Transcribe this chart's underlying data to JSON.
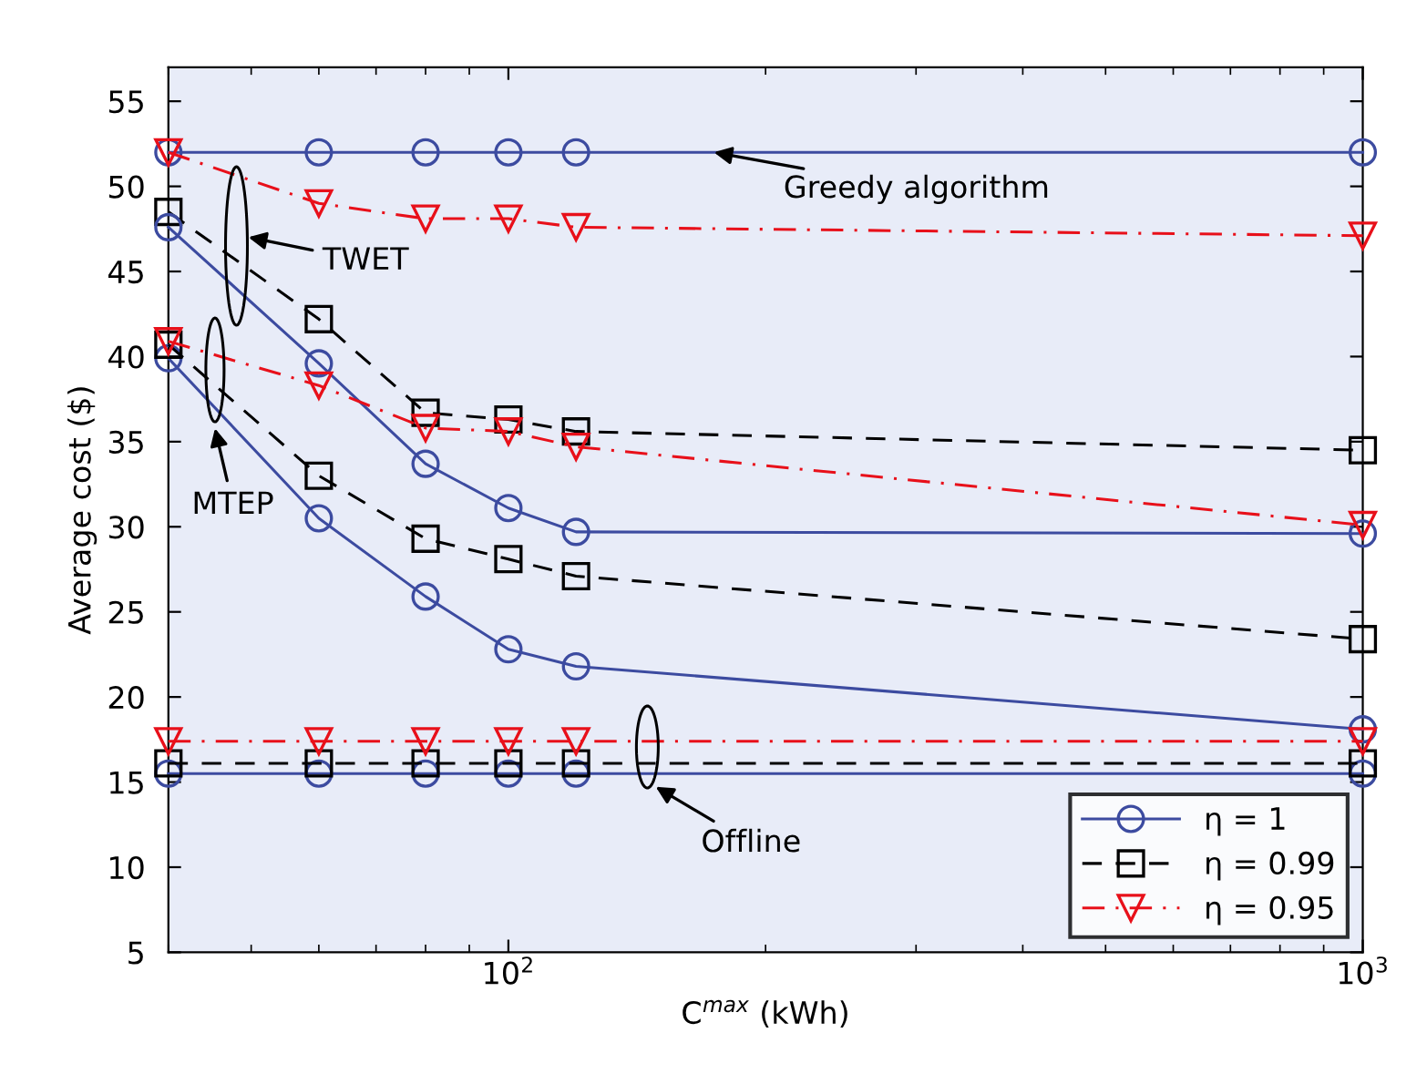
{
  "chart_data": {
    "type": "line",
    "xlabel": "C$^{max}$ (kWh)",
    "ylabel": "Average cost ($)",
    "x": [
      40,
      60,
      80,
      100,
      120,
      1000
    ],
    "xlim": [
      40,
      1000
    ],
    "xticks": [
      {
        "value": 100,
        "label": "10$^{2}$"
      },
      {
        "value": 1000,
        "label": "10$^{3}$"
      }
    ],
    "ylim": [
      5,
      57
    ],
    "yticks": [
      5,
      10,
      15,
      20,
      25,
      30,
      35,
      40,
      45,
      50,
      55
    ],
    "log": "x",
    "grid": false,
    "legend": "bottom right",
    "series": [
      {
        "name": "η = 1",
        "color": "#3c4ba0",
        "marker": "circle",
        "line_style": "solid",
        "values": [
          52,
          52,
          52,
          52,
          52,
          52
        ]
      },
      {
        "name": "η = 0.99",
        "color": "#000000",
        "marker": "square",
        "line_style": "dashed",
        "values": [
          48.5,
          42.2,
          36.7,
          36.3,
          35.6,
          34.5
        ]
      },
      {
        "name": "η = 0.95",
        "color": "#e8101a",
        "marker": "triangle",
        "line_style": "dashdot",
        "values": [
          52,
          49.0,
          48.1,
          48.1,
          47.6,
          47.1
        ]
      },
      {
        "color": "#3c4ba0",
        "marker": "circle",
        "line_style": "solid",
        "values": [
          47.6,
          39.6,
          33.7,
          31.1,
          29.7,
          29.6
        ]
      },
      {
        "color": "#3c4ba0",
        "marker": "circle",
        "line_style": "solid",
        "values": [
          39.9,
          30.5,
          25.9,
          22.8,
          21.8,
          18.1
        ]
      },
      {
        "color": "#3c4ba0",
        "marker": "circle",
        "line_style": "solid",
        "values": [
          15.5,
          15.5,
          15.5,
          15.5,
          15.5,
          15.5
        ]
      },
      {
        "color": "#000000",
        "marker": "square",
        "line_style": "dashed",
        "values": [
          40.7,
          33.0,
          29.3,
          28.1,
          27.1,
          23.4
        ]
      },
      {
        "color": "#000000",
        "marker": "square",
        "line_style": "dashed",
        "values": [
          16.1,
          16.1,
          16.1,
          16.1,
          16.1,
          16.1
        ]
      },
      {
        "color": "#e8101a",
        "marker": "triangle",
        "line_style": "dashdot",
        "values": [
          40.9,
          38.3,
          35.8,
          35.6,
          34.7,
          30.1
        ]
      },
      {
        "color": "#e8101a",
        "marker": "triangle",
        "line_style": "dashdot",
        "values": [
          17.4,
          17.4,
          17.4,
          17.4,
          17.4,
          17.4
        ]
      }
    ],
    "annotations": [
      "TWET",
      "MTEP",
      "Offline",
      {
        "text": "Greedy algorithm",
        "x": 174,
        "y": 52
      }
    ]
  }
}
